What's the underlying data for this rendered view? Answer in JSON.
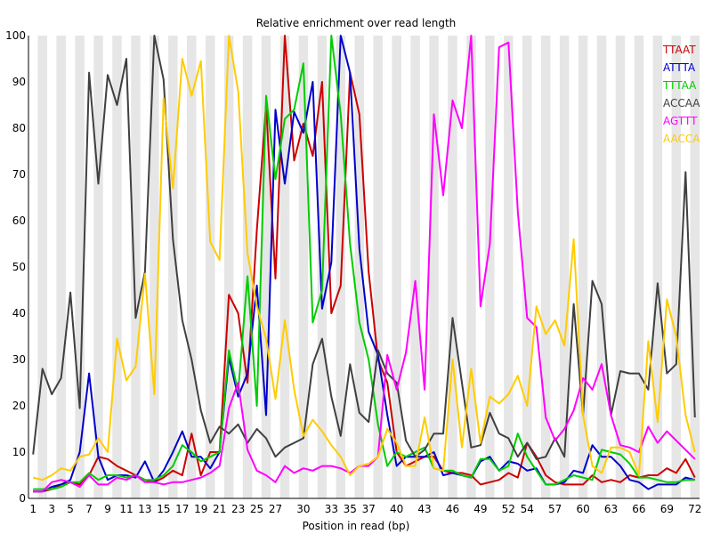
{
  "chart_data": {
    "type": "line",
    "title": "Relative enrichment over read length",
    "xlabel": "Position in read (bp)",
    "ylabel": "",
    "ylim": [
      0,
      100
    ],
    "yticks": [
      0,
      10,
      20,
      30,
      40,
      50,
      60,
      70,
      80,
      90,
      100
    ],
    "x_tick_labels": [
      "1",
      "3",
      "5",
      "7",
      "9",
      "11",
      "13",
      "15",
      "17",
      "19",
      "21",
      "23",
      "25",
      "27",
      "30",
      "33",
      "35",
      "37",
      "40",
      "43",
      "46",
      "49",
      "52",
      "54",
      "57",
      "60",
      "63",
      "66",
      "69",
      "72"
    ],
    "x_tick_positions": [
      1,
      3,
      5,
      7,
      9,
      11,
      13,
      15,
      17,
      19,
      21,
      23,
      25,
      27,
      30,
      33,
      35,
      37,
      40,
      43,
      46,
      49,
      52,
      54,
      57,
      60,
      63,
      66,
      69,
      72
    ],
    "x_min": 1,
    "x_max": 72,
    "grid": true,
    "legend_position": "top-right",
    "x": [
      1,
      2,
      3,
      4,
      5,
      6,
      7,
      8,
      9,
      10,
      11,
      12,
      13,
      14,
      15,
      16,
      17,
      18,
      19,
      20,
      21,
      22,
      23,
      24,
      25,
      26,
      27,
      28,
      29,
      30,
      31,
      32,
      33,
      34,
      35,
      36,
      37,
      38,
      39,
      40,
      41,
      42,
      43,
      44,
      45,
      46,
      47,
      48,
      49,
      50,
      51,
      52,
      53,
      54,
      55,
      56,
      57,
      58,
      59,
      60,
      61,
      62,
      63,
      64,
      65,
      66,
      67,
      68,
      69,
      70,
      71,
      72
    ],
    "series": [
      {
        "name": "TTAAT",
        "color": "#cc0000",
        "values": [
          1.5,
          1.5,
          2,
          3,
          3.5,
          3,
          5,
          9,
          8.5,
          7,
          6,
          5,
          4,
          3.5,
          4.5,
          6,
          5,
          14,
          5,
          10,
          10,
          44,
          40,
          25,
          58,
          85,
          47.5,
          100,
          73,
          81,
          74,
          90,
          40,
          46,
          92,
          83,
          49,
          30,
          25,
          10,
          7,
          8,
          9,
          9,
          6,
          5.5,
          5.5,
          5,
          3,
          3.5,
          4,
          5.5,
          4.5,
          12,
          9,
          5,
          3.5,
          3,
          3,
          3,
          5,
          3.5,
          4,
          3.5,
          5,
          4.5,
          5,
          5,
          6.5,
          5.5,
          8.5,
          4.5
        ]
      },
      {
        "name": "ATTTA",
        "color": "#0000cc",
        "values": [
          1.5,
          1.5,
          2.5,
          3,
          4,
          10,
          27,
          9,
          4,
          5,
          5,
          4.5,
          8,
          3.5,
          6,
          10,
          14.5,
          9,
          9,
          6.5,
          10,
          30.5,
          22,
          27,
          46,
          18,
          84,
          68,
          83.5,
          79,
          90,
          41,
          51,
          100,
          92,
          54,
          36,
          31,
          18,
          7,
          9,
          9,
          9,
          10,
          5,
          5.5,
          5,
          4.5,
          8,
          9,
          6,
          8,
          7.5,
          6,
          6.5,
          3,
          3,
          3.5,
          6,
          5.5,
          11.5,
          9,
          9,
          7,
          4,
          3.5,
          2,
          3,
          3,
          3,
          4.5,
          4
        ]
      },
      {
        "name": "TTTAA",
        "color": "#00cc00",
        "values": [
          2,
          2,
          2,
          2.5,
          3.5,
          3.5,
          5.5,
          4,
          5,
          5,
          4.5,
          5,
          4,
          4,
          5,
          7,
          11.5,
          10,
          8,
          9,
          10,
          32,
          23,
          48,
          20,
          87,
          69,
          82,
          84,
          94,
          38,
          45,
          100,
          83,
          55,
          38,
          30,
          16,
          7,
          10,
          9,
          10,
          11,
          6.5,
          6,
          6,
          5,
          4.5,
          8.5,
          8.5,
          6,
          7,
          14,
          9,
          6,
          3,
          3,
          4,
          5,
          4.5,
          4,
          10.5,
          10,
          9.5,
          7.5,
          4.5,
          4.5,
          4,
          3.5,
          3.5,
          4,
          4
        ]
      },
      {
        "name": "ACCAA",
        "color": "#404040",
        "values": [
          9.5,
          28,
          22.5,
          26,
          44.5,
          19.5,
          92,
          68,
          91.5,
          85,
          95,
          39,
          49,
          100,
          90.5,
          56,
          38.5,
          30,
          19,
          12,
          15.5,
          14,
          16,
          12,
          15,
          13,
          9,
          11,
          12,
          13,
          29,
          34.5,
          22,
          13.5,
          29,
          18.5,
          16.5,
          32,
          27,
          25,
          12.5,
          9,
          10.5,
          14,
          14,
          39,
          25,
          11,
          11.5,
          18.5,
          14,
          13,
          9,
          12,
          8.5,
          9,
          13,
          9,
          42,
          18,
          47,
          42,
          18,
          27.5,
          27,
          27,
          23.5,
          46.5,
          27,
          29,
          70.5,
          17.5
        ]
      },
      {
        "name": "AGTTT",
        "color": "#ff00ff",
        "values": [
          1.5,
          1.5,
          3.5,
          4,
          3.5,
          2.5,
          5,
          3,
          3,
          4.5,
          4,
          5,
          3.5,
          3.5,
          3,
          3.5,
          3.5,
          4,
          4.5,
          5.5,
          7,
          19.5,
          25,
          10.5,
          6,
          5,
          3.5,
          7,
          5.5,
          6.5,
          6,
          7,
          7,
          6.5,
          5.5,
          7,
          7,
          9,
          31,
          23.5,
          31.5,
          47,
          23.5,
          83,
          65.5,
          86,
          80,
          100,
          41.5,
          55,
          97.5,
          98.5,
          62,
          39,
          37,
          17.5,
          12.5,
          15,
          19,
          26,
          23.5,
          29,
          18,
          11.5,
          11,
          10,
          15.5,
          12,
          14.5,
          12.5,
          10.5,
          8.5
        ]
      },
      {
        "name": "AACCA",
        "color": "#ffcc00",
        "values": [
          4.5,
          4,
          5,
          6.5,
          6,
          9,
          9.5,
          13,
          10,
          34.5,
          25.5,
          28.5,
          48.5,
          22.5,
          86.5,
          67,
          95,
          87,
          94.5,
          55.5,
          51.5,
          100,
          88,
          53,
          41.5,
          34.5,
          21.5,
          38.5,
          23.5,
          13.5,
          17,
          14.5,
          11.5,
          9,
          5,
          7,
          7.5,
          9,
          15,
          12,
          7,
          7,
          17.5,
          6.5,
          6,
          30,
          11,
          28,
          12,
          22,
          20.5,
          22.5,
          26.5,
          20,
          41.5,
          35.5,
          38.5,
          33,
          56,
          18,
          7,
          5.5,
          11,
          11,
          10,
          5,
          34,
          16.5,
          43,
          35,
          18,
          10
        ]
      }
    ]
  }
}
